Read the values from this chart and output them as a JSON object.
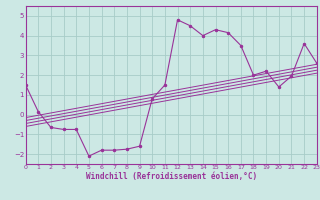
{
  "xlabel": "Windchill (Refroidissement éolien,°C)",
  "bg_color": "#cce8e4",
  "grid_color": "#a8ccc8",
  "line_color": "#993399",
  "spine_color": "#993399",
  "xlim": [
    0,
    23
  ],
  "ylim": [
    -2.5,
    5.5
  ],
  "xticks": [
    0,
    1,
    2,
    3,
    4,
    5,
    6,
    7,
    8,
    9,
    10,
    11,
    12,
    13,
    14,
    15,
    16,
    17,
    18,
    19,
    20,
    21,
    22,
    23
  ],
  "yticks": [
    -2,
    -1,
    0,
    1,
    2,
    3,
    4,
    5
  ],
  "main_data_x": [
    0,
    1,
    2,
    3,
    4,
    5,
    6,
    7,
    8,
    9,
    10,
    11,
    12,
    13,
    14,
    15,
    16,
    17,
    18,
    19,
    20,
    21,
    22,
    23
  ],
  "main_data_y": [
    1.5,
    0.15,
    -0.65,
    -0.75,
    -0.75,
    -2.1,
    -1.8,
    -1.8,
    -1.75,
    -1.6,
    0.8,
    1.5,
    4.8,
    4.5,
    4.0,
    4.3,
    4.15,
    3.5,
    2.0,
    2.2,
    1.4,
    1.95,
    3.6,
    2.6
  ],
  "reg_lines": [
    {
      "x": [
        0,
        23
      ],
      "y": [
        -0.6,
        2.1
      ]
    },
    {
      "x": [
        0,
        23
      ],
      "y": [
        -0.45,
        2.25
      ]
    },
    {
      "x": [
        0,
        23
      ],
      "y": [
        -0.3,
        2.4
      ]
    },
    {
      "x": [
        0,
        23
      ],
      "y": [
        -0.15,
        2.55
      ]
    }
  ]
}
